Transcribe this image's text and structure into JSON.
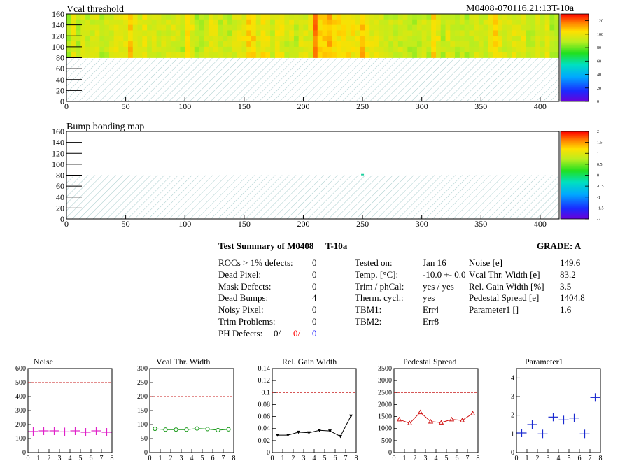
{
  "header_id": "M0408-070116.21:13T-10a",
  "chart_data": [
    {
      "type": "heatmap",
      "title": "Vcal threshold",
      "xlim": [
        0,
        416
      ],
      "ylim": [
        0,
        160
      ],
      "xticks": [
        0,
        50,
        100,
        150,
        200,
        250,
        300,
        350,
        400
      ],
      "yticks": [
        0,
        20,
        40,
        60,
        80,
        100,
        120,
        140,
        160
      ],
      "filled_rows": [
        80,
        160
      ],
      "hatched_rows": [
        0,
        80
      ],
      "z_range": [
        0,
        130
      ],
      "colorbar_ticks": [
        0,
        20,
        40,
        60,
        80,
        100,
        120
      ],
      "dark_columns": [
        52,
        103,
        155,
        208,
        260,
        312,
        364
      ]
    },
    {
      "type": "heatmap",
      "title": "Bump bonding map",
      "xlim": [
        0,
        416
      ],
      "ylim": [
        0,
        160
      ],
      "xticks": [
        0,
        50,
        100,
        150,
        200,
        250,
        300,
        350,
        400
      ],
      "yticks": [
        0,
        20,
        40,
        60,
        80,
        100,
        120,
        140,
        160
      ],
      "hatched_rows": [
        0,
        80
      ],
      "z_range": [
        -2,
        2
      ],
      "colorbar_ticks": [
        "-2",
        "-1.5",
        "-1",
        "-0.5",
        "0",
        "0.5",
        "1",
        "1.5",
        "2"
      ],
      "markers": [
        {
          "x": 250,
          "y": 81
        }
      ]
    },
    {
      "type": "scatter",
      "title": "Noise",
      "ylim": [
        0,
        600
      ],
      "xlim": [
        0,
        8
      ],
      "yticks": [
        0,
        100,
        200,
        300,
        400,
        500,
        600
      ],
      "x": [
        0.5,
        1.5,
        2.5,
        3.5,
        4.5,
        5.5,
        6.5,
        7.5
      ],
      "values": [
        150,
        155,
        155,
        148,
        155,
        145,
        155,
        145
      ],
      "reference_line": 500,
      "color": "#e020c8",
      "marker": "cross"
    },
    {
      "type": "line",
      "title": "Vcal Thr. Width",
      "ylim": [
        0,
        300
      ],
      "xlim": [
        0,
        8
      ],
      "yticks": [
        0,
        50,
        100,
        150,
        200,
        250,
        300
      ],
      "x": [
        0.5,
        1.5,
        2.5,
        3.5,
        4.5,
        5.5,
        6.5,
        7.5
      ],
      "values": [
        85,
        82,
        82,
        82,
        86,
        84,
        80,
        83
      ],
      "reference_line": 200,
      "color": "#1a9a1a",
      "marker": "circle"
    },
    {
      "type": "line",
      "title": "Rel. Gain Width",
      "ylim": [
        0,
        0.14
      ],
      "xlim": [
        0,
        8
      ],
      "yticks": [
        "0",
        "0.02",
        "0.04",
        "0.06",
        "0.08",
        "0.1",
        "0.12",
        "0.14"
      ],
      "x": [
        0.5,
        1.5,
        2.5,
        3.5,
        4.5,
        5.5,
        6.5,
        7.5
      ],
      "values": [
        0.029,
        0.029,
        0.034,
        0.033,
        0.037,
        0.036,
        0.027,
        0.061
      ],
      "reference_line": 0.1,
      "color": "#000000",
      "marker": "triangle-down"
    },
    {
      "type": "line",
      "title": "Pedestal Spread",
      "ylim": [
        0,
        3500
      ],
      "xlim": [
        0,
        8
      ],
      "yticks": [
        0,
        500,
        1000,
        1500,
        2000,
        2500,
        3000,
        3500
      ],
      "x": [
        0.5,
        1.5,
        2.5,
        3.5,
        4.5,
        5.5,
        6.5,
        7.5
      ],
      "values": [
        1380,
        1220,
        1680,
        1290,
        1250,
        1380,
        1340,
        1630
      ],
      "reference_line": 2500,
      "color": "#d01010",
      "marker": "triangle-up"
    },
    {
      "type": "scatter",
      "title": "Parameter1",
      "ylim": [
        0,
        4.5
      ],
      "xlim": [
        0,
        8
      ],
      "yticks": [
        0,
        1,
        2,
        3,
        4
      ],
      "x": [
        0.5,
        1.5,
        2.5,
        3.5,
        4.5,
        5.5,
        6.5,
        7.5
      ],
      "values": [
        1.05,
        1.5,
        1.0,
        1.9,
        1.75,
        1.85,
        1.0,
        2.95
      ],
      "color": "#1a2ad0",
      "marker": "cross"
    }
  ],
  "summary": {
    "title": "Test Summary of M0408",
    "temp_tag": "T-10a",
    "grade": "GRADE:  A",
    "left": [
      {
        "label": "ROCs > 1% defects:",
        "value": "0"
      },
      {
        "label": "Dead Pixel:",
        "value": "0"
      },
      {
        "label": "Mask Defects:",
        "value": "0"
      },
      {
        "label": "Dead Bumps:",
        "value": "4"
      },
      {
        "label": "Noisy Pixel:",
        "value": "0"
      },
      {
        "label": "Trim Problems:",
        "value": "0"
      }
    ],
    "ph_label": "PH Defects:",
    "ph_values": [
      "0/",
      "0/",
      "0"
    ],
    "ph_colors": [
      "#000000",
      "#ff0000",
      "#0000ff"
    ],
    "middle": [
      {
        "label": "Tested on:",
        "value": "Jan 16"
      },
      {
        "label": "Temp. [°C]:",
        "value": "-10.0 +- 0.0"
      },
      {
        "label": "Trim / phCal:",
        "value": "yes / yes"
      },
      {
        "label": "Therm. cycl.:",
        "value": "yes"
      },
      {
        "label": "TBM1:",
        "value": "Err4"
      },
      {
        "label": "TBM2:",
        "value": "Err8"
      }
    ],
    "right": [
      {
        "label": "Noise [e]",
        "value": "149.6"
      },
      {
        "label": "Vcal Thr. Width [e]",
        "value": "83.2"
      },
      {
        "label": "Rel. Gain Width [%]",
        "value": "3.5"
      },
      {
        "label": "Pedestal Spread [e]",
        "value": "1404.8"
      },
      {
        "label": "Parameter1 []",
        "value": "1.6"
      }
    ]
  },
  "colors": {
    "hatch": "#9ec8c8",
    "reference_line": "#c81e1e"
  }
}
